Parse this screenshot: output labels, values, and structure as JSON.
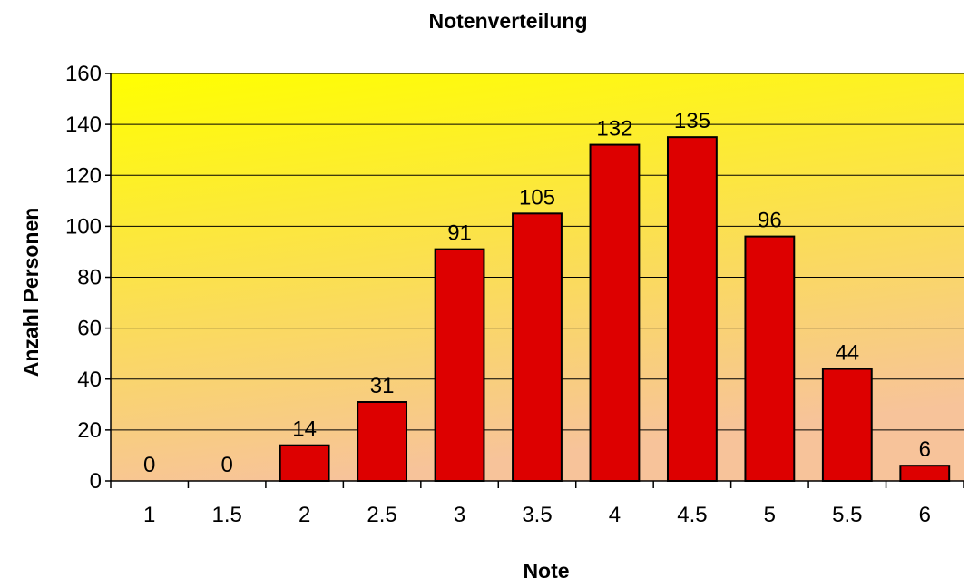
{
  "chart_data": {
    "type": "bar",
    "title": "Notenverteilung",
    "xlabel": "Note",
    "ylabel": "Anzahl Personen",
    "categories": [
      "1",
      "1.5",
      "2",
      "2.5",
      "3",
      "3.5",
      "4",
      "4.5",
      "5",
      "5.5",
      "6"
    ],
    "values": [
      0,
      0,
      14,
      31,
      91,
      105,
      132,
      135,
      96,
      44,
      6
    ],
    "data_labels": [
      "0",
      "0",
      "14",
      "31",
      "91",
      "105",
      "132",
      "135",
      "96",
      "44",
      "6"
    ],
    "ylim": [
      0,
      160
    ],
    "yticks": [
      0,
      20,
      40,
      60,
      80,
      100,
      120,
      140,
      160
    ],
    "ytick_labels": [
      "0",
      "20",
      "40",
      "60",
      "80",
      "100",
      "120",
      "140",
      "160"
    ],
    "grid": "horizontal",
    "legend": "none",
    "colors": {
      "bar_fill": "#dd0000",
      "bar_stroke": "#000000",
      "plot_bg_top": "#ffff00",
      "plot_bg_bottom": "#f7c39a",
      "grid_line": "#000000"
    }
  }
}
